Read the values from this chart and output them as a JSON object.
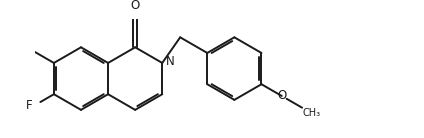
{
  "bg_color": "#ffffff",
  "line_color": "#1a1a1a",
  "line_width": 1.4,
  "font_size": 8.5,
  "fig_width": 4.24,
  "fig_height": 1.38,
  "dpi": 100,
  "xlim": [
    0,
    11.5
  ],
  "ylim": [
    0,
    3.8
  ]
}
